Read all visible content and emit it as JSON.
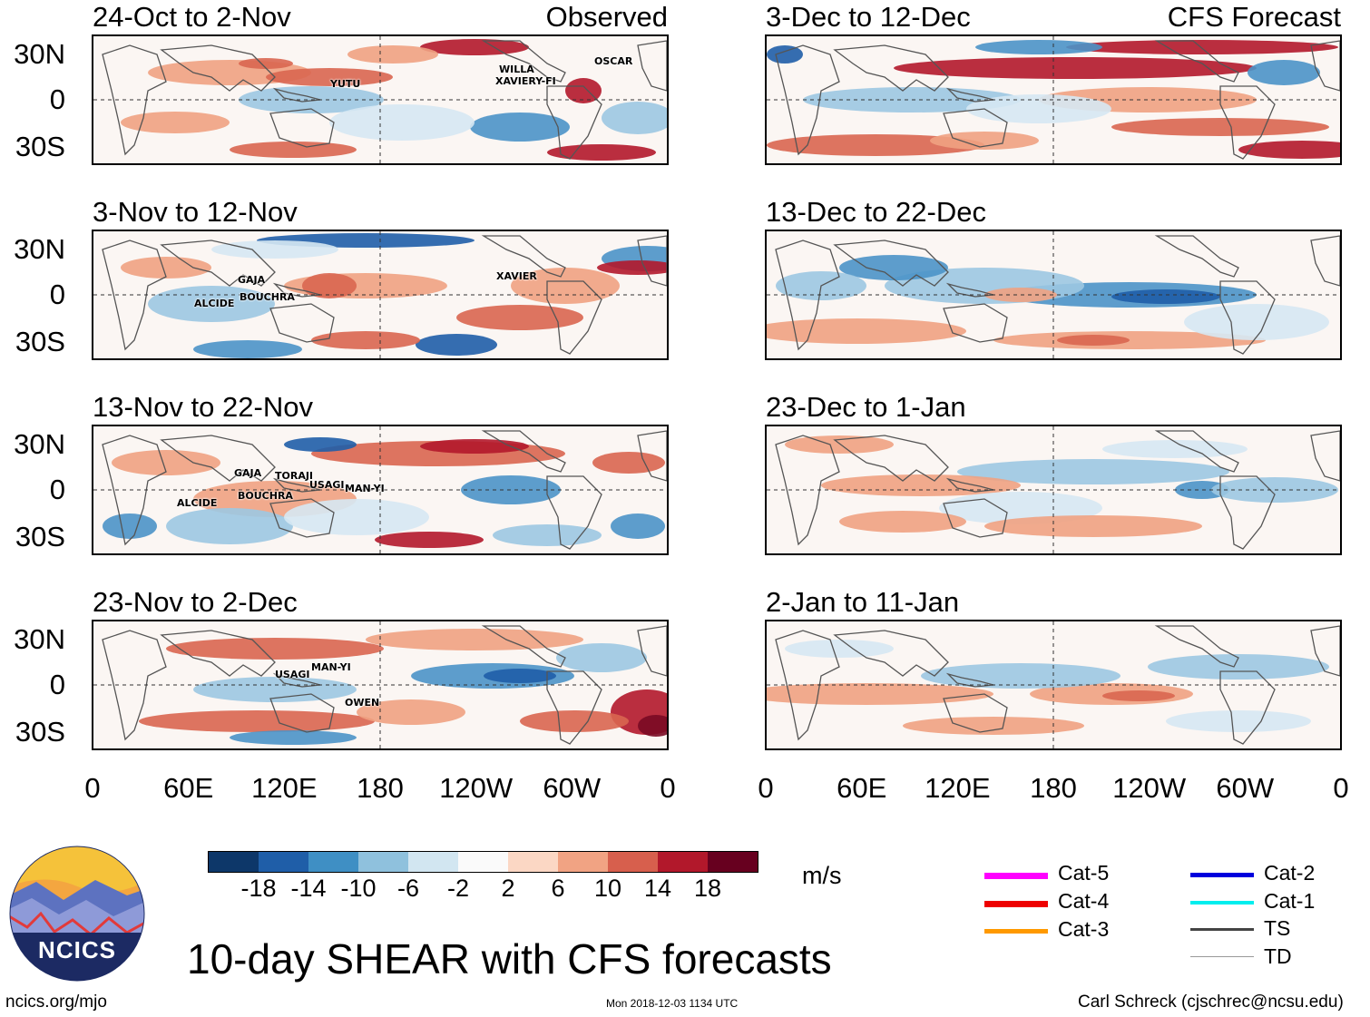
{
  "header": {
    "observed_label": "Observed",
    "forecast_label": "CFS Forecast"
  },
  "panels": {
    "left": [
      {
        "title": "24-Oct to 2-Nov"
      },
      {
        "title": "3-Nov to 12-Nov"
      },
      {
        "title": "13-Nov to 22-Nov"
      },
      {
        "title": "23-Nov to 2-Dec"
      }
    ],
    "right": [
      {
        "title": "3-Dec to 12-Dec"
      },
      {
        "title": "13-Dec to 22-Dec"
      },
      {
        "title": "23-Dec to 1-Jan"
      },
      {
        "title": "2-Jan to 11-Jan"
      }
    ]
  },
  "storms": {
    "p1": [
      "YUTU",
      "WILLA",
      "XAVIERY-FI",
      "OSCAR"
    ],
    "p2": [
      "GAJA",
      "ALCIDE",
      "BOUCHRA",
      "XAVIER"
    ],
    "p3": [
      "GAJA",
      "TORAJI",
      "USAGI",
      "MAN-YI",
      "BOUCHRA",
      "ALCIDE"
    ],
    "p4": [
      "USAGI",
      "MAN-YI",
      "OWEN"
    ]
  },
  "axes": {
    "lat_labels": [
      "30N",
      "0",
      "30S"
    ],
    "lon_labels": [
      "0",
      "60E",
      "120E",
      "180",
      "120W",
      "60W",
      "0"
    ]
  },
  "colorbar": {
    "ticks": [
      "-18",
      "-14",
      "-10",
      "-6",
      "-2",
      "2",
      "6",
      "10",
      "14",
      "18"
    ],
    "colors": [
      "#0d3769",
      "#1f5ea8",
      "#3f8fc4",
      "#8fc1dd",
      "#d2e6f1",
      "#fafafa",
      "#fbd7c4",
      "#f1a383",
      "#d75f4d",
      "#b2182b",
      "#67001f"
    ],
    "units": "m/s"
  },
  "legend": [
    {
      "label": "Cat-5",
      "color": "#ff00ff"
    },
    {
      "label": "Cat-4",
      "color": "#ee0000"
    },
    {
      "label": "Cat-3",
      "color": "#ff9900"
    },
    {
      "label": "Cat-2",
      "color": "#0000dd"
    },
    {
      "label": "Cat-1",
      "color": "#00eeee"
    },
    {
      "label": "TS",
      "color": "#444444"
    },
    {
      "label": "TD",
      "color": "#999999"
    }
  ],
  "logo": {
    "text": "NCICS"
  },
  "title": "10-day SHEAR with CFS forecasts",
  "footer": {
    "url": "ncics.org/mjo",
    "timestamp": "Mon 2018-12-03 1134 UTC",
    "credit": "Carl Schreck (cjschrec@ncsu.edu)"
  }
}
